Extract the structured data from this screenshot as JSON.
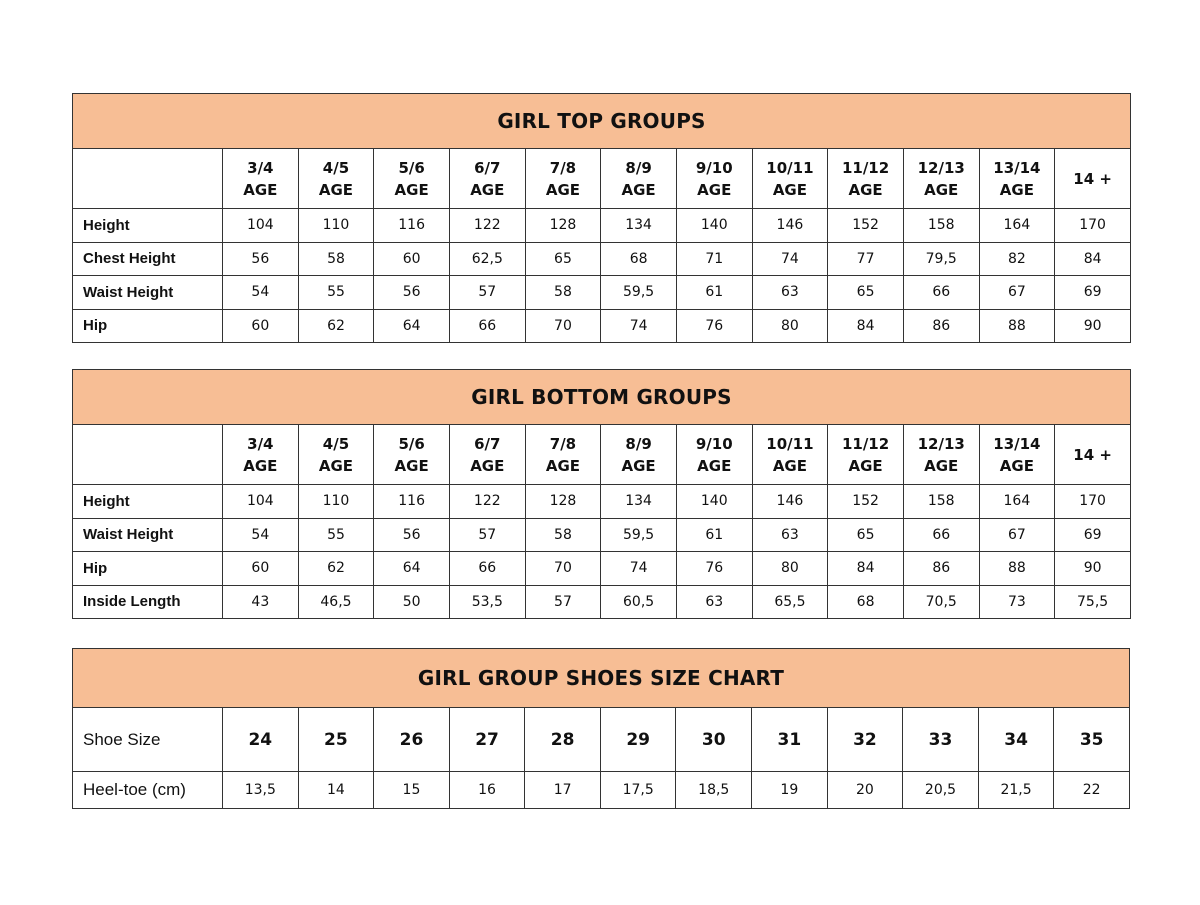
{
  "colors": {
    "header_fill": "#F7BE95",
    "border": "#333333"
  },
  "top": {
    "title": "GIRL TOP GROUPS",
    "columns": [
      [
        "3/4",
        "AGE"
      ],
      [
        "4/5",
        "AGE"
      ],
      [
        "5/6",
        "AGE"
      ],
      [
        "6/7",
        "AGE"
      ],
      [
        "7/8",
        "AGE"
      ],
      [
        "8/9",
        "AGE"
      ],
      [
        "9/10",
        "AGE"
      ],
      [
        "10/11",
        "AGE"
      ],
      [
        "11/12",
        "AGE"
      ],
      [
        "12/13",
        "AGE"
      ],
      [
        "13/14",
        "AGE"
      ],
      [
        "14 +"
      ]
    ],
    "rows": [
      {
        "label": "Height",
        "values": [
          "104",
          "110",
          "116",
          "122",
          "128",
          "134",
          "140",
          "146",
          "152",
          "158",
          "164",
          "170"
        ]
      },
      {
        "label": "Chest Height",
        "values": [
          "56",
          "58",
          "60",
          "62,5",
          "65",
          "68",
          "71",
          "74",
          "77",
          "79,5",
          "82",
          "84"
        ]
      },
      {
        "label": "Waist Height",
        "values": [
          "54",
          "55",
          "56",
          "57",
          "58",
          "59,5",
          "61",
          "63",
          "65",
          "66",
          "67",
          "69"
        ]
      },
      {
        "label": "Hip",
        "values": [
          "60",
          "62",
          "64",
          "66",
          "70",
          "74",
          "76",
          "80",
          "84",
          "86",
          "88",
          "90"
        ]
      }
    ]
  },
  "bottom": {
    "title": "GIRL BOTTOM GROUPS",
    "columns": [
      [
        "3/4",
        "AGE"
      ],
      [
        "4/5",
        "AGE"
      ],
      [
        "5/6",
        "AGE"
      ],
      [
        "6/7",
        "AGE"
      ],
      [
        "7/8",
        "AGE"
      ],
      [
        "8/9",
        "AGE"
      ],
      [
        "9/10",
        "AGE"
      ],
      [
        "10/11",
        "AGE"
      ],
      [
        "11/12",
        "AGE"
      ],
      [
        "12/13",
        "AGE"
      ],
      [
        "13/14",
        "AGE"
      ],
      [
        "14 +"
      ]
    ],
    "rows": [
      {
        "label": "Height",
        "values": [
          "104",
          "110",
          "116",
          "122",
          "128",
          "134",
          "140",
          "146",
          "152",
          "158",
          "164",
          "170"
        ]
      },
      {
        "label": "Waist Height",
        "values": [
          "54",
          "55",
          "56",
          "57",
          "58",
          "59,5",
          "61",
          "63",
          "65",
          "66",
          "67",
          "69"
        ]
      },
      {
        "label": "Hip",
        "values": [
          "60",
          "62",
          "64",
          "66",
          "70",
          "74",
          "76",
          "80",
          "84",
          "86",
          "88",
          "90"
        ]
      },
      {
        "label": "Inside Length",
        "values": [
          "43",
          "46,5",
          "50",
          "53,5",
          "57",
          "60,5",
          "63",
          "65,5",
          "68",
          "70,5",
          "73",
          "75,5"
        ]
      }
    ]
  },
  "shoes": {
    "title": "GIRL GROUP SHOES SIZE CHART",
    "size_label": "Shoe Size",
    "sizes": [
      "24",
      "25",
      "26",
      "27",
      "28",
      "29",
      "30",
      "31",
      "32",
      "33",
      "34",
      "35"
    ],
    "heel_label": "Heel-toe (cm)",
    "heel_toe": [
      "13,5",
      "14",
      "15",
      "16",
      "17",
      "17,5",
      "18,5",
      "19",
      "20",
      "20,5",
      "21,5",
      "22"
    ]
  }
}
